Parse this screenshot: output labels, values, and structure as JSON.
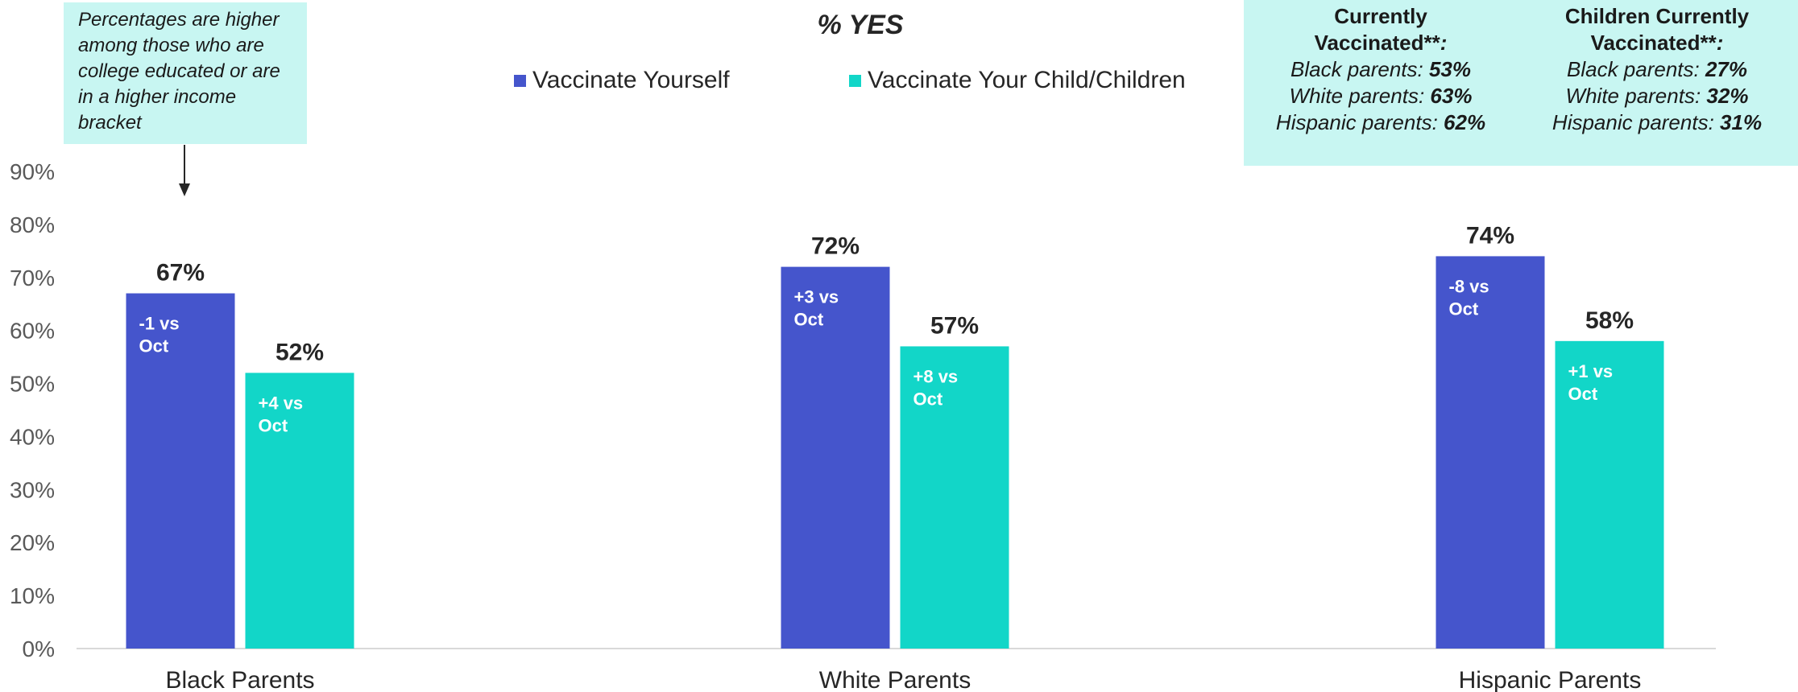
{
  "title": "% YES",
  "note": "Percentages are higher among those who are college educated or are in a higher income bracket",
  "legend": {
    "series1": "Vaccinate Yourself",
    "series2": "Vaccinate Your Child/Children"
  },
  "info_box": {
    "col1": {
      "header_line1": "Currently",
      "header_line2": "Vaccinated**",
      "rows": [
        {
          "label": "Black parents: ",
          "value": "53%"
        },
        {
          "label": "White parents: ",
          "value": "63%"
        },
        {
          "label": "Hispanic parents: ",
          "value": "62%"
        }
      ]
    },
    "col2": {
      "header_line1": "Children Currently",
      "header_line2": "Vaccinated**",
      "rows": [
        {
          "label": "Black parents: ",
          "value": "27%"
        },
        {
          "label": "White parents: ",
          "value": "32%"
        },
        {
          "label": "Hispanic parents: ",
          "value": "31%"
        }
      ]
    }
  },
  "colors": {
    "series1": "#4555cc",
    "series2": "#12d6c8",
    "note_bg": "#c8f6f2",
    "axis_text": "#595959"
  },
  "chart_data": {
    "type": "bar",
    "categories": [
      "Black Parents",
      "White Parents",
      "Hispanic Parents"
    ],
    "series": [
      {
        "name": "Vaccinate Yourself",
        "values": [
          67,
          72,
          74
        ],
        "value_labels": [
          "67%",
          "72%",
          "74%"
        ],
        "change_labels": [
          [
            "-1 vs",
            "Oct"
          ],
          [
            "+3 vs",
            "Oct"
          ],
          [
            "-8 vs",
            "Oct"
          ]
        ]
      },
      {
        "name": "Vaccinate Your Child/Children",
        "values": [
          52,
          57,
          58
        ],
        "value_labels": [
          "52%",
          "57%",
          "58%"
        ],
        "change_labels": [
          [
            "+4 vs",
            "Oct"
          ],
          [
            "+8 vs",
            "Oct"
          ],
          [
            "+1 vs",
            "Oct"
          ]
        ]
      }
    ],
    "ylim": [
      0,
      90
    ],
    "yticks": [
      "0%",
      "10%",
      "20%",
      "30%",
      "40%",
      "50%",
      "60%",
      "70%",
      "80%",
      "90%"
    ],
    "title": "% YES",
    "legend_position": "top-center",
    "grid": false
  }
}
